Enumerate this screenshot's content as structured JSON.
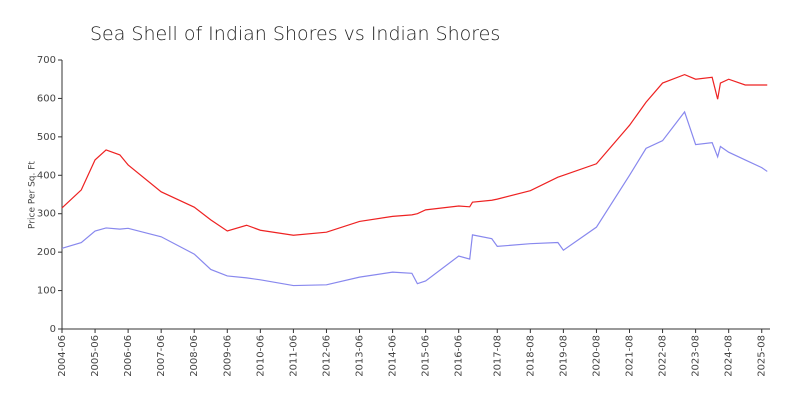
{
  "chart_data": {
    "type": "line",
    "title": "Sea Shell of Indian Shores vs Indian Shores",
    "y_label": "Price Per Sq. Ft",
    "x": [
      "2004-06",
      "2005-01",
      "2005-06",
      "2005-10",
      "2006-03",
      "2006-06",
      "2007-06",
      "2008-06",
      "2008-12",
      "2009-06",
      "2010-01",
      "2010-06",
      "2011-06",
      "2012-06",
      "2013-06",
      "2014-06",
      "2015-01",
      "2015-03",
      "2015-06",
      "2016-06",
      "2016-10",
      "2016-11",
      "2017-06",
      "2017-08",
      "2018-08",
      "2019-06",
      "2019-08",
      "2020-08",
      "2021-08",
      "2022-02",
      "2022-08",
      "2023-04",
      "2023-08",
      "2024-02",
      "2024-04",
      "2024-05",
      "2024-08",
      "2025-02",
      "2025-08",
      "2025-10"
    ],
    "series": [
      {
        "color": "#ee2222",
        "values": [
          315,
          362,
          440,
          466,
          453,
          427,
          357,
          317,
          284,
          255,
          270,
          257,
          244,
          252,
          280,
          293,
          297,
          300,
          310,
          320,
          318,
          330,
          335,
          338,
          360,
          395,
          400,
          430,
          530,
          590,
          640,
          662,
          650,
          655,
          598,
          640,
          650,
          635,
          635,
          635
        ]
      },
      {
        "color": "#8888ee",
        "values": [
          210,
          225,
          255,
          263,
          260,
          262,
          240,
          195,
          155,
          138,
          133,
          128,
          113,
          115,
          135,
          148,
          145,
          118,
          125,
          190,
          182,
          245,
          235,
          215,
          222,
          225,
          205,
          265,
          400,
          470,
          490,
          565,
          480,
          485,
          448,
          475,
          460,
          440,
          420,
          410
        ]
      }
    ],
    "xlim": [
      "2004-06",
      "2025-11"
    ],
    "xticks": [
      "2004-06",
      "2005-06",
      "2006-06",
      "2007-06",
      "2008-06",
      "2009-06",
      "2010-06",
      "2011-06",
      "2012-06",
      "2013-06",
      "2014-06",
      "2015-06",
      "2016-06",
      "2017-08",
      "2018-08",
      "2019-08",
      "2020-08",
      "2021-08",
      "2022-08",
      "2023-08",
      "2024-08",
      "2025-08"
    ],
    "ylim": [
      0,
      700
    ],
    "yticks": [
      0,
      100,
      200,
      300,
      400,
      500,
      600,
      700
    ],
    "grid": false
  }
}
